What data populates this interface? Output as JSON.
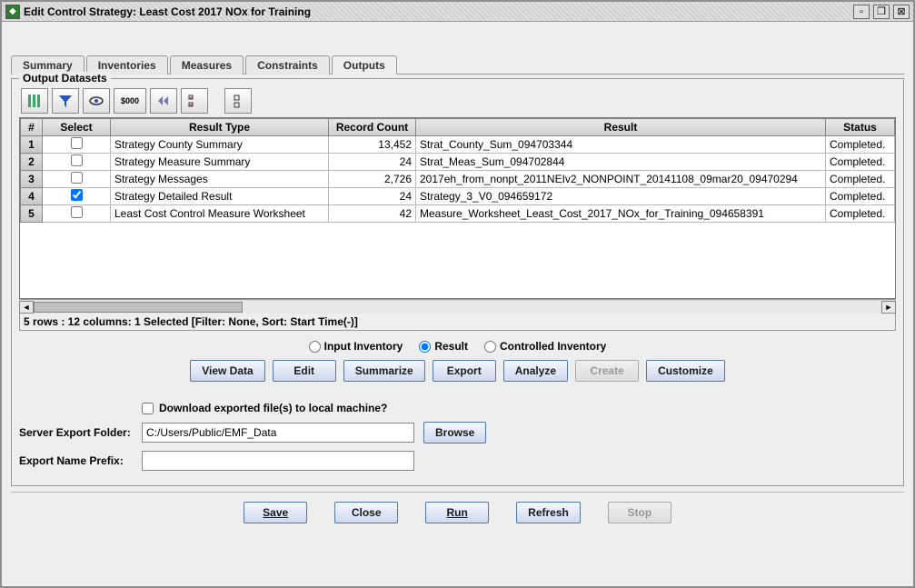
{
  "window": {
    "title": "Edit Control Strategy: Least Cost 2017 NOx for Training"
  },
  "tabs": [
    "Summary",
    "Inventories",
    "Measures",
    "Constraints",
    "Outputs"
  ],
  "activeTab": 4,
  "groupLabel": "Output Datasets",
  "table": {
    "columns": [
      "#",
      "Select",
      "Result Type",
      "Record Count",
      "Result",
      "Status"
    ],
    "rows": [
      {
        "n": "1",
        "sel": false,
        "type": "Strategy County Summary",
        "count": "13,452",
        "result": "Strat_County_Sum_094703344",
        "status": "Completed."
      },
      {
        "n": "2",
        "sel": false,
        "type": "Strategy Measure Summary",
        "count": "24",
        "result": "Strat_Meas_Sum_094702844",
        "status": "Completed."
      },
      {
        "n": "3",
        "sel": false,
        "type": "Strategy Messages",
        "count": "2,726",
        "result": "2017eh_from_nonpt_2011NEIv2_NONPOINT_20141108_09mar20_09470294",
        "status": "Completed."
      },
      {
        "n": "4",
        "sel": true,
        "type": "Strategy Detailed Result",
        "count": "24",
        "result": "Strategy_3_V0_094659172",
        "status": "Completed."
      },
      {
        "n": "5",
        "sel": false,
        "type": "Least Cost Control Measure Worksheet",
        "count": "42",
        "result": "Measure_Worksheet_Least_Cost_2017_NOx_for_Training_094658391",
        "status": "Completed."
      }
    ]
  },
  "statusLine": "5 rows : 12 columns: 1 Selected [Filter: None, Sort: Start Time(-)]",
  "radios": {
    "input": "Input Inventory",
    "result": "Result",
    "controlled": "Controlled Inventory",
    "selected": "result"
  },
  "actionButtons": {
    "view": "View Data",
    "edit": "Edit",
    "summarize": "Summarize",
    "export": "Export",
    "analyze": "Analyze",
    "create": "Create",
    "customize": "Customize"
  },
  "downloadCheck": "Download exported file(s) to local machine?",
  "serverFolder": {
    "label": "Server Export Folder:",
    "value": "C:/Users/Public/EMF_Data",
    "browse": "Browse"
  },
  "exportPrefix": {
    "label": "Export Name Prefix:",
    "value": ""
  },
  "bottom": {
    "save": "Save",
    "close": "Close",
    "run": "Run",
    "refresh": "Refresh",
    "stop": "Stop"
  },
  "toolbarCost": "$000"
}
